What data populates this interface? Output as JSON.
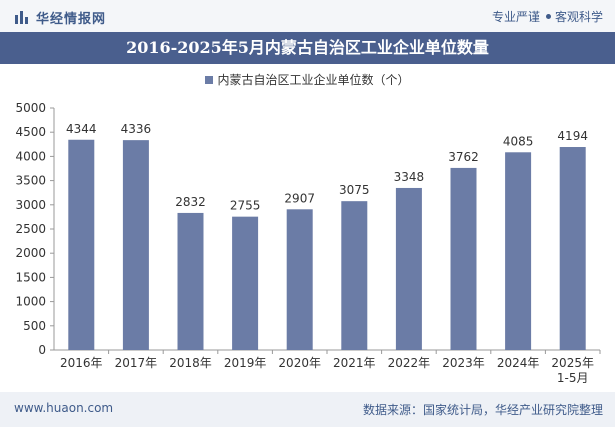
{
  "header": {
    "brand": "华经情报网",
    "slogan_left": "专业严谨",
    "slogan_right": "客观科学"
  },
  "chart_data": {
    "type": "bar",
    "title": "2016-2025年5月内蒙古自治区工业企业单位数量",
    "categories": [
      "2016年",
      "2017年",
      "2018年",
      "2019年",
      "2020年",
      "2021年",
      "2022年",
      "2023年",
      "2024年",
      "2025年\n1-5月"
    ],
    "series": [
      {
        "name": "内蒙古自治区工业企业单位数（个）",
        "values": [
          4344,
          4336,
          2832,
          2755,
          2907,
          3075,
          3348,
          3762,
          4085,
          4194
        ]
      }
    ],
    "ylim": [
      0,
      5000
    ],
    "yticks": [
      0,
      500,
      1000,
      1500,
      2000,
      2500,
      3000,
      3500,
      4000,
      4500,
      5000
    ],
    "grid": false,
    "legend": "top-center",
    "bar_color": "#6b7ca6"
  },
  "footer": {
    "url": "www.huaon.com",
    "source": "数据来源：国家统计局，华经产业研究院整理"
  }
}
